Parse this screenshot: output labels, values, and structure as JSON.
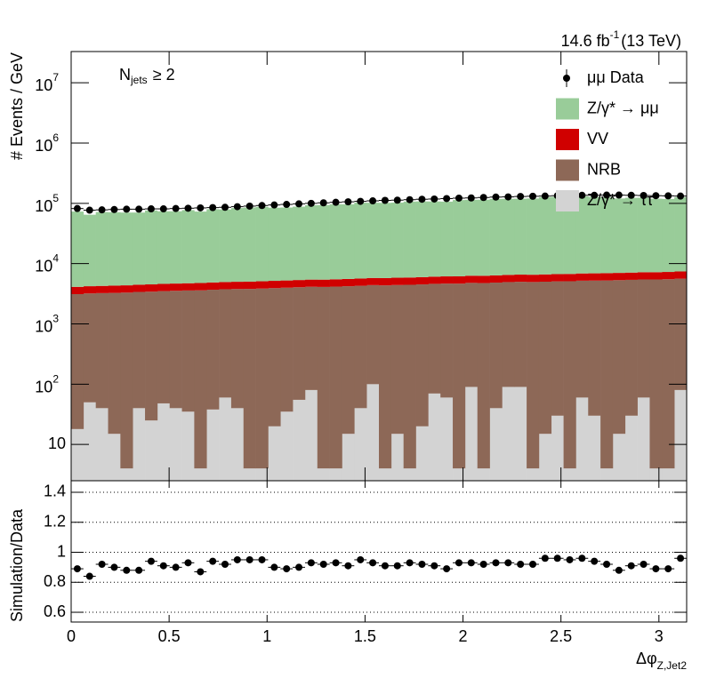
{
  "chart_data": {
    "type": "stacked_histogram",
    "lumi": "14.6 fb",
    "lumi_sup": "-1",
    "lumi_rest": "(13 TeV)",
    "annotation": "N",
    "annotation_sub": "jets",
    "annotation_rest": "≥ 2",
    "ylabel": "# Events / GeV",
    "xlabel": "Δφ",
    "xlabel_sub": "Z,Jet2",
    "log_y": true,
    "bins": [
      0,
      0.0628,
      0.1257,
      0.1885,
      0.2513,
      0.3142,
      0.377,
      0.4398,
      0.5027,
      0.5655,
      0.6283,
      0.6912,
      0.754,
      0.8168,
      0.8796,
      0.9425,
      1.0053,
      1.0681,
      1.131,
      1.1938,
      1.2566,
      1.3195,
      1.3823,
      1.4451,
      1.508,
      1.5708,
      1.6336,
      1.6965,
      1.7593,
      1.8221,
      1.885,
      1.9478,
      2.0106,
      2.0735,
      2.1363,
      2.1991,
      2.2619,
      2.3248,
      2.3876,
      2.4504,
      2.5133,
      2.5761,
      2.6389,
      2.7018,
      2.7646,
      2.8274,
      2.8903,
      2.9531,
      3.0159,
      3.0788,
      3.1416
    ],
    "xlim": [
      0,
      3.1416
    ],
    "xticks": [
      0,
      0.5,
      1,
      1.5,
      2,
      2.5,
      3
    ],
    "ylim": [
      2.5,
      33000000
    ],
    "yticks": [
      10,
      {
        "value": 100,
        "label": "10",
        "sup": "2"
      },
      {
        "value": 1000,
        "label": "10",
        "sup": "3"
      },
      {
        "value": 10000,
        "label": "10",
        "sup": "4"
      },
      {
        "value": 100000,
        "label": "10",
        "sup": "5"
      },
      {
        "value": 1000000,
        "label": "10",
        "sup": "6"
      },
      {
        "value": 10000000,
        "label": "10",
        "sup": "7"
      }
    ],
    "legend": "top-right",
    "data": {
      "name": "μμ Data",
      "color": "#000000",
      "values": [
        82000,
        77000,
        78000,
        79000,
        80000,
        80000,
        81000,
        81000,
        82000,
        83000,
        84000,
        85000,
        86000,
        88000,
        90000,
        92000,
        94000,
        96000,
        98000,
        100000,
        102000,
        104000,
        106000,
        108000,
        110000,
        112000,
        113000,
        115000,
        117000,
        118000,
        120000,
        122000,
        123000,
        125000,
        127000,
        128000,
        130000,
        131000,
        132000,
        134000,
        135000,
        136000,
        136000,
        137000,
        137000,
        136000,
        135000,
        134000,
        133000,
        132000
      ]
    },
    "series": [
      {
        "name": "Z/γ* → ττ",
        "color": "#d3d3d3",
        "values": [
          18,
          50,
          40,
          15,
          4,
          40,
          25,
          48,
          40,
          35,
          4,
          38,
          60,
          40,
          4,
          4,
          20,
          35,
          55,
          80,
          4,
          4,
          15,
          40,
          100,
          4,
          15,
          4,
          20,
          70,
          60,
          4,
          90,
          4,
          40,
          90,
          90,
          4,
          15,
          30,
          4,
          60,
          30,
          4,
          15,
          30,
          60,
          4,
          4,
          80
        ]
      },
      {
        "name": "NRB",
        "color": "#8d6857",
        "values": [
          3100,
          3150,
          3200,
          3250,
          3300,
          3350,
          3400,
          3450,
          3500,
          3550,
          3600,
          3650,
          3700,
          3750,
          3800,
          3850,
          3900,
          3950,
          4000,
          4050,
          4100,
          4150,
          4200,
          4250,
          4300,
          4350,
          4400,
          4450,
          4500,
          4550,
          4600,
          4650,
          4700,
          4750,
          4800,
          4850,
          4900,
          4950,
          5000,
          5050,
          5100,
          5150,
          5200,
          5250,
          5300,
          5350,
          5400,
          5450,
          5500,
          5550
        ]
      },
      {
        "name": "VV",
        "color": "#d00000",
        "values": [
          1000,
          1020,
          1030,
          1050,
          1060,
          1080,
          1100,
          1110,
          1130,
          1140,
          1160,
          1180,
          1190,
          1210,
          1220,
          1240,
          1260,
          1270,
          1290,
          1300,
          1320,
          1340,
          1350,
          1370,
          1380,
          1400,
          1420,
          1430,
          1450,
          1460,
          1480,
          1500,
          1510,
          1530,
          1540,
          1560,
          1580,
          1590,
          1610,
          1620,
          1640,
          1660,
          1670,
          1690,
          1700,
          1720,
          1740,
          1750,
          1770,
          1780
        ]
      },
      {
        "name": "Z/γ* → μμ",
        "color": "#99cc99",
        "values": [
          68900,
          60500,
          67500,
          66800,
          66000,
          65900,
          71600,
          69100,
          69100,
          72500,
          68300,
          75000,
          74100,
          78600,
          80500,
          82300,
          79400,
          80100,
          82800,
          87500,
          88400,
          91200,
          90900,
          96900,
          96500,
          96100,
          96900,
          101100,
          101600,
          101300,
          100600,
          107300,
          108100,
          108700,
          111700,
          112500,
          113000,
          113900,
          120000,
          121900,
          121500,
          123700,
          120900,
          119000,
          113500,
          116700,
          117000,
          112000,
          111000,
          119300
        ]
      }
    ],
    "ratio": {
      "ylabel": "Simulation/Data",
      "ylim": [
        0.535,
        1.477
      ],
      "yticks": [
        0.6,
        0.8,
        1,
        1.2,
        1.4
      ],
      "grid": true,
      "values": [
        0.89,
        0.84,
        0.92,
        0.9,
        0.88,
        0.88,
        0.94,
        0.91,
        0.9,
        0.93,
        0.87,
        0.94,
        0.92,
        0.95,
        0.95,
        0.95,
        0.9,
        0.89,
        0.9,
        0.93,
        0.92,
        0.93,
        0.91,
        0.95,
        0.93,
        0.91,
        0.91,
        0.93,
        0.92,
        0.91,
        0.89,
        0.93,
        0.93,
        0.92,
        0.93,
        0.93,
        0.92,
        0.92,
        0.96,
        0.96,
        0.95,
        0.96,
        0.94,
        0.92,
        0.88,
        0.91,
        0.92,
        0.89,
        0.89,
        0.96
      ]
    }
  }
}
